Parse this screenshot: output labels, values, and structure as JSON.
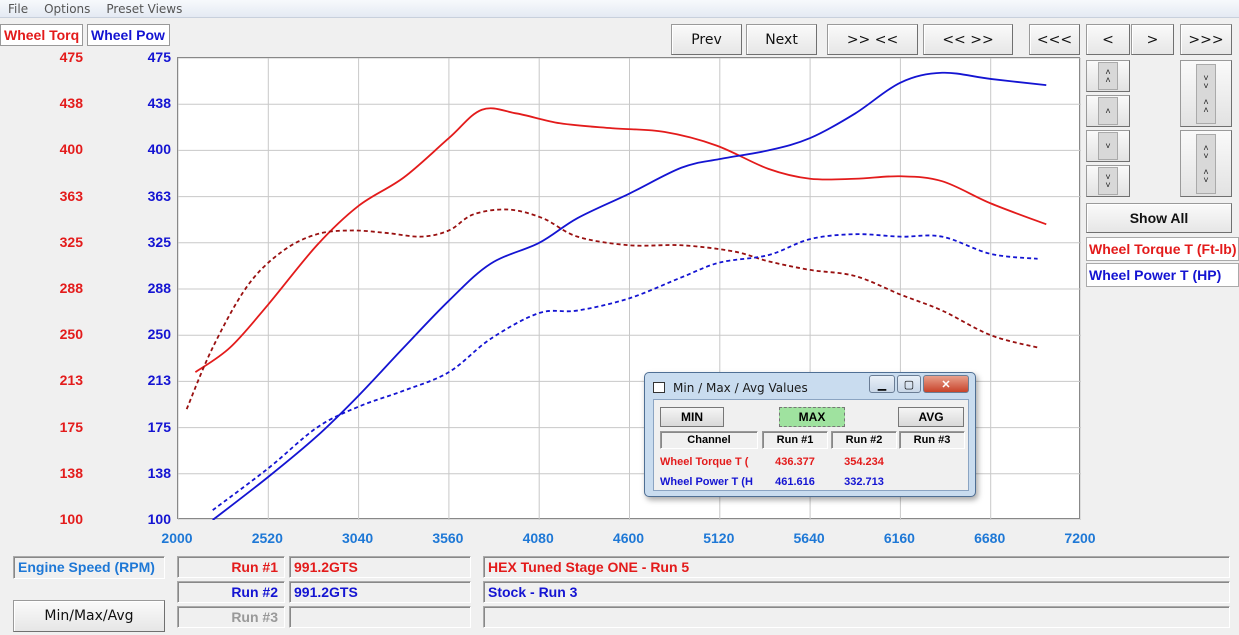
{
  "menu": [
    "File",
    "Options",
    "Preset Views"
  ],
  "channels": {
    "torque_label": "Wheel Torq",
    "power_label": "Wheel Pow"
  },
  "nav_buttons": {
    "prev": "Prev",
    "next": "Next",
    "zoom_in": ">> <<",
    "zoom_out": "<< >>",
    "far_left": "<<<",
    "left": "<",
    "right": ">",
    "far_right": ">>>"
  },
  "show_all": "Show All",
  "legend": {
    "torque": "Wheel Torque T (Ft-lb)",
    "power": "Wheel Power T (HP)"
  },
  "colors": {
    "torque": "#e31b1b",
    "power": "#1414d2",
    "axis_x": "#1e78d6",
    "max_active": "#9fe29f"
  },
  "chart_data": {
    "type": "line",
    "xlabel": "Engine Speed (RPM)",
    "x_ticks": [
      "2000",
      "2520",
      "3040",
      "3560",
      "4080",
      "4600",
      "5120",
      "5640",
      "6160",
      "6680",
      "7200"
    ],
    "xlim": [
      2000,
      7200
    ],
    "y_left_ticks": [
      "475",
      "438",
      "400",
      "363",
      "325",
      "288",
      "250",
      "213",
      "175",
      "138",
      "100"
    ],
    "y_right_ticks": [
      "475",
      "438",
      "400",
      "363",
      "325",
      "288",
      "250",
      "213",
      "175",
      "138",
      "100"
    ],
    "ylim": [
      100,
      475
    ],
    "series": [
      {
        "name": "Wheel Torque T (Ft-lb)",
        "run": 1,
        "color": "#e31b1b",
        "dash": false,
        "x": [
          2100,
          2300,
          2520,
          2800,
          3040,
          3300,
          3560,
          3750,
          3950,
          4200,
          4500,
          4800,
          5100,
          5400,
          5640,
          5900,
          6160,
          6400,
          6680,
          7000
        ],
        "y": [
          220,
          240,
          275,
          323,
          355,
          378,
          410,
          433,
          430,
          422,
          418,
          415,
          404,
          385,
          377,
          377,
          379,
          375,
          357,
          340
        ]
      },
      {
        "name": "Wheel Torque T (Ft-lb)",
        "run": 2,
        "color": "#991010",
        "dash": true,
        "x": [
          2050,
          2200,
          2400,
          2600,
          2800,
          3000,
          3200,
          3400,
          3560,
          3700,
          3900,
          4100,
          4300,
          4600,
          4900,
          5200,
          5400,
          5640,
          5900,
          6160,
          6400,
          6680,
          6950
        ],
        "y": [
          190,
          240,
          290,
          318,
          332,
          335,
          333,
          330,
          335,
          348,
          352,
          345,
          330,
          323,
          323,
          318,
          310,
          303,
          298,
          283,
          270,
          250,
          240
        ]
      },
      {
        "name": "Wheel Power T (HP)",
        "run": 1,
        "color": "#1414d2",
        "dash": false,
        "x": [
          2200,
          2520,
          2800,
          3040,
          3300,
          3560,
          3800,
          4080,
          4300,
          4600,
          4900,
          5120,
          5400,
          5640,
          5900,
          6160,
          6400,
          6680,
          7000
        ],
        "y": [
          100,
          135,
          168,
          201,
          240,
          278,
          308,
          325,
          345,
          365,
          386,
          393,
          400,
          410,
          430,
          455,
          463,
          458,
          453
        ]
      },
      {
        "name": "Wheel Power T (HP)",
        "run": 2,
        "color": "#1414d2",
        "dash": true,
        "x": [
          2200,
          2520,
          2800,
          3040,
          3300,
          3560,
          3800,
          4080,
          4300,
          4600,
          4900,
          5120,
          5400,
          5640,
          5900,
          6160,
          6400,
          6680,
          6950
        ],
        "y": [
          108,
          142,
          175,
          192,
          205,
          220,
          247,
          268,
          270,
          280,
          297,
          309,
          315,
          328,
          332,
          330,
          330,
          316,
          312
        ]
      }
    ]
  },
  "bottom": {
    "engine_speed": "Engine Speed (RPM)",
    "run1_label": "Run #1",
    "run1_car": "991.2GTS",
    "run1_desc": "HEX Tuned Stage ONE - Run 5",
    "run2_label": "Run #2",
    "run2_car": "991.2GTS",
    "run2_desc": "Stock - Run 3",
    "run3_label": "Run #3",
    "run3_car": "",
    "run3_desc": "",
    "minmax_button": "Min/Max/Avg"
  },
  "dialog": {
    "title": "Min / Max / Avg Values",
    "min": "MIN",
    "max": "MAX",
    "avg": "AVG",
    "headers": [
      "Channel",
      "Run #1",
      "Run #2",
      "Run #3"
    ],
    "rows": [
      {
        "channel": "Wheel Torque T (",
        "run1": "436.377",
        "run2": "354.234",
        "run3": ""
      },
      {
        "channel": "Wheel Power T (H",
        "run1": "461.616",
        "run2": "332.713",
        "run3": ""
      }
    ]
  }
}
